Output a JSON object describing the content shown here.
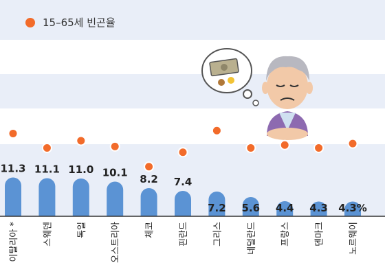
{
  "colors": {
    "bar": "#5b93d4",
    "dot": "#f26b2a",
    "band": "#e9eef8",
    "axis": "#333333"
  },
  "illustration": {
    "character": "worried-elderly-man",
    "thought": "money-banknote-coins"
  },
  "chart_data": {
    "type": "bar",
    "legend": [
      {
        "marker": "dot",
        "label": "15–65세 빈곤율"
      }
    ],
    "categories": [
      "이탈리아 *",
      "스웨덴",
      "독일",
      "오스트리아",
      "체코",
      "핀란드",
      "그리스",
      "네덜란드",
      "프랑스",
      "덴마크",
      "노르웨이"
    ],
    "series": [
      {
        "name": "",
        "type": "bar",
        "values": [
          11.3,
          11.1,
          11.0,
          10.1,
          8.2,
          7.4,
          7.2,
          5.6,
          4.4,
          4.3,
          4.3
        ]
      },
      {
        "name": "15–65세 빈곤율",
        "type": "dot",
        "values": [
          11.9,
          9.9,
          10.9,
          10.1,
          7.3,
          9.3,
          12.3,
          9.9,
          10.3,
          9.9,
          10.5
        ]
      }
    ],
    "value_labels": [
      "11.3",
      "11.1",
      "11.0",
      "10.1",
      "8.2",
      "7.4",
      "7.2",
      "5.6",
      "4.4",
      "4.3",
      "4.3%"
    ],
    "xlabel": "",
    "ylabel": "",
    "grid": false
  }
}
